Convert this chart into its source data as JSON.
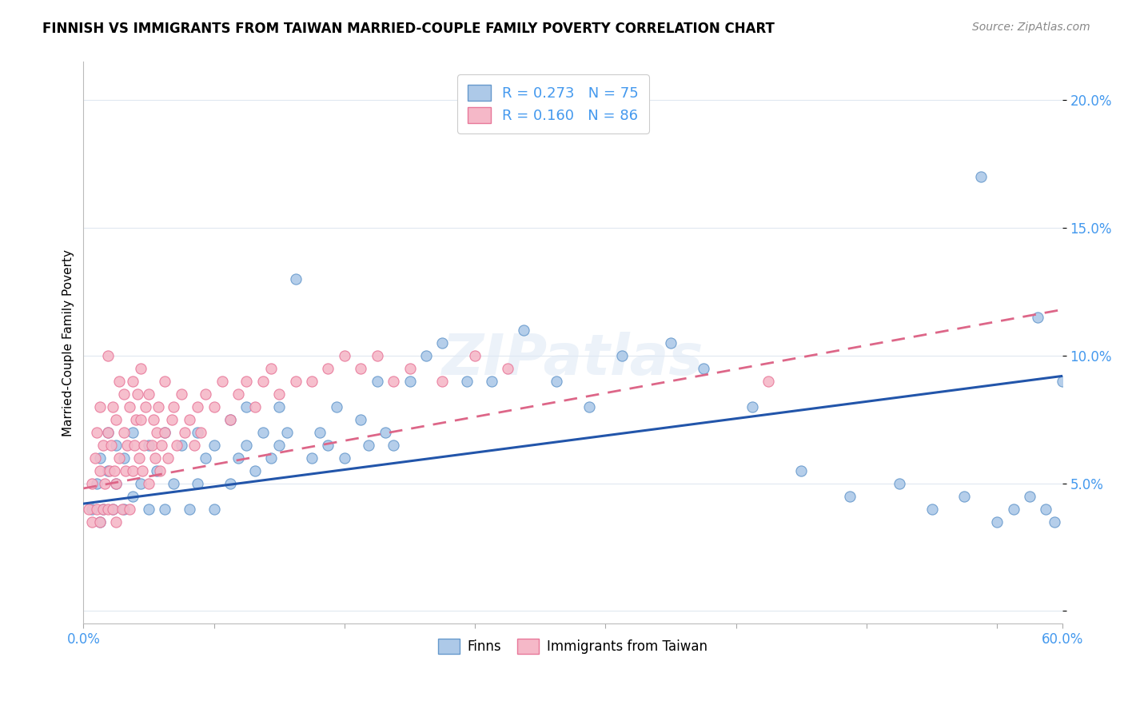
{
  "title": "FINNISH VS IMMIGRANTS FROM TAIWAN MARRIED-COUPLE FAMILY POVERTY CORRELATION CHART",
  "source": "Source: ZipAtlas.com",
  "ylabel": "Married-Couple Family Poverty",
  "xlim": [
    0.0,
    0.6
  ],
  "ylim": [
    -0.005,
    0.215
  ],
  "r_finns": 0.273,
  "n_finns": 75,
  "r_taiwan": 0.16,
  "n_taiwan": 86,
  "legend_label_finns": "Finns",
  "legend_label_taiwan": "Immigrants from Taiwan",
  "color_finns_face": "#adc9e8",
  "color_finns_edge": "#6699cc",
  "color_taiwan_face": "#f5b8c8",
  "color_taiwan_edge": "#e8789a",
  "color_finns_line": "#2255aa",
  "color_taiwan_line": "#dd6688",
  "color_blue_text": "#4499ee",
  "background_color": "#ffffff",
  "grid_color": "#e0e8f0",
  "finns_x": [
    0.005,
    0.008,
    0.01,
    0.01,
    0.012,
    0.015,
    0.015,
    0.018,
    0.02,
    0.02,
    0.025,
    0.025,
    0.03,
    0.03,
    0.035,
    0.04,
    0.04,
    0.045,
    0.05,
    0.05,
    0.055,
    0.06,
    0.065,
    0.07,
    0.07,
    0.075,
    0.08,
    0.08,
    0.09,
    0.09,
    0.095,
    0.1,
    0.1,
    0.105,
    0.11,
    0.115,
    0.12,
    0.12,
    0.125,
    0.13,
    0.14,
    0.145,
    0.15,
    0.155,
    0.16,
    0.17,
    0.175,
    0.18,
    0.185,
    0.19,
    0.2,
    0.21,
    0.22,
    0.235,
    0.25,
    0.27,
    0.29,
    0.31,
    0.33,
    0.36,
    0.38,
    0.41,
    0.44,
    0.47,
    0.5,
    0.52,
    0.54,
    0.55,
    0.56,
    0.57,
    0.58,
    0.585,
    0.59,
    0.595,
    0.6
  ],
  "finns_y": [
    0.04,
    0.05,
    0.035,
    0.06,
    0.04,
    0.055,
    0.07,
    0.04,
    0.05,
    0.065,
    0.04,
    0.06,
    0.045,
    0.07,
    0.05,
    0.04,
    0.065,
    0.055,
    0.04,
    0.07,
    0.05,
    0.065,
    0.04,
    0.05,
    0.07,
    0.06,
    0.04,
    0.065,
    0.05,
    0.075,
    0.06,
    0.065,
    0.08,
    0.055,
    0.07,
    0.06,
    0.065,
    0.08,
    0.07,
    0.13,
    0.06,
    0.07,
    0.065,
    0.08,
    0.06,
    0.075,
    0.065,
    0.09,
    0.07,
    0.065,
    0.09,
    0.1,
    0.105,
    0.09,
    0.09,
    0.11,
    0.09,
    0.08,
    0.1,
    0.105,
    0.095,
    0.08,
    0.055,
    0.045,
    0.05,
    0.04,
    0.045,
    0.17,
    0.035,
    0.04,
    0.045,
    0.115,
    0.04,
    0.035,
    0.09
  ],
  "taiwan_x": [
    0.003,
    0.005,
    0.005,
    0.007,
    0.008,
    0.008,
    0.01,
    0.01,
    0.01,
    0.012,
    0.012,
    0.013,
    0.015,
    0.015,
    0.015,
    0.016,
    0.017,
    0.018,
    0.018,
    0.019,
    0.02,
    0.02,
    0.02,
    0.022,
    0.022,
    0.024,
    0.025,
    0.025,
    0.026,
    0.027,
    0.028,
    0.028,
    0.03,
    0.03,
    0.031,
    0.032,
    0.033,
    0.034,
    0.035,
    0.035,
    0.036,
    0.037,
    0.038,
    0.04,
    0.04,
    0.042,
    0.043,
    0.044,
    0.045,
    0.046,
    0.047,
    0.048,
    0.05,
    0.05,
    0.052,
    0.054,
    0.055,
    0.057,
    0.06,
    0.062,
    0.065,
    0.068,
    0.07,
    0.072,
    0.075,
    0.08,
    0.085,
    0.09,
    0.095,
    0.1,
    0.105,
    0.11,
    0.115,
    0.12,
    0.13,
    0.14,
    0.15,
    0.16,
    0.17,
    0.18,
    0.19,
    0.2,
    0.22,
    0.24,
    0.26,
    0.42
  ],
  "taiwan_y": [
    0.04,
    0.035,
    0.05,
    0.06,
    0.04,
    0.07,
    0.035,
    0.055,
    0.08,
    0.04,
    0.065,
    0.05,
    0.04,
    0.07,
    0.1,
    0.055,
    0.065,
    0.04,
    0.08,
    0.055,
    0.035,
    0.05,
    0.075,
    0.06,
    0.09,
    0.04,
    0.07,
    0.085,
    0.055,
    0.065,
    0.04,
    0.08,
    0.055,
    0.09,
    0.065,
    0.075,
    0.085,
    0.06,
    0.075,
    0.095,
    0.055,
    0.065,
    0.08,
    0.05,
    0.085,
    0.065,
    0.075,
    0.06,
    0.07,
    0.08,
    0.055,
    0.065,
    0.07,
    0.09,
    0.06,
    0.075,
    0.08,
    0.065,
    0.085,
    0.07,
    0.075,
    0.065,
    0.08,
    0.07,
    0.085,
    0.08,
    0.09,
    0.075,
    0.085,
    0.09,
    0.08,
    0.09,
    0.095,
    0.085,
    0.09,
    0.09,
    0.095,
    0.1,
    0.095,
    0.1,
    0.09,
    0.095,
    0.09,
    0.1,
    0.095,
    0.09
  ],
  "finns_line_x": [
    0.0,
    0.6
  ],
  "finns_line_y": [
    0.042,
    0.092
  ],
  "taiwan_line_x": [
    0.0,
    0.6
  ],
  "taiwan_line_y": [
    0.048,
    0.118
  ],
  "xtick_positions": [
    0.0,
    0.08,
    0.16,
    0.24,
    0.32,
    0.4,
    0.48,
    0.56,
    0.6
  ],
  "ytick_positions": [
    0.0,
    0.05,
    0.1,
    0.15,
    0.2
  ],
  "ytick_labels": [
    "",
    "5.0%",
    "10.0%",
    "15.0%",
    "20.0%"
  ]
}
